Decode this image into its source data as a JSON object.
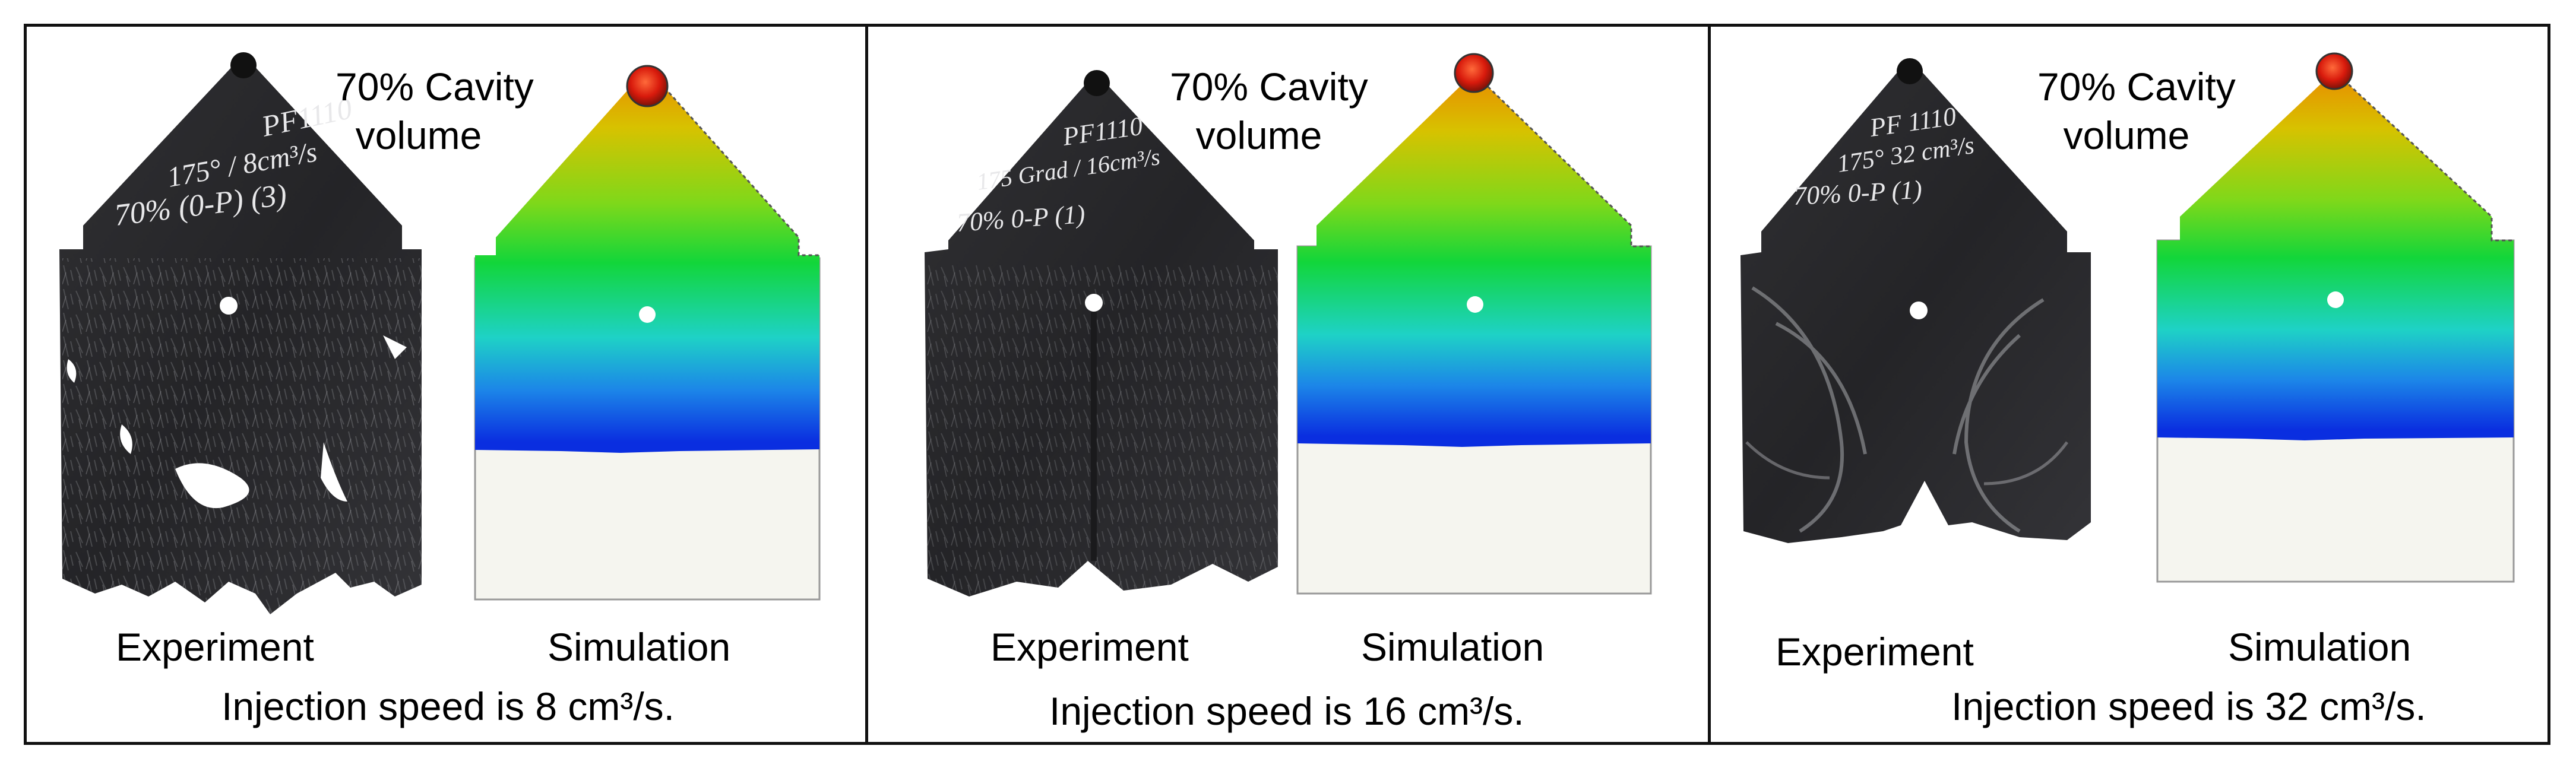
{
  "panels": [
    {
      "cavity_line1": "70% Cavity",
      "cavity_line2": "volume",
      "experiment_label": "Experiment",
      "simulation_label": "Simulation",
      "caption": "Injection speed is 8 cm³/s.",
      "handwriting": [
        "PF1110",
        "175° / 8cm³/s",
        "70% (0-P) (3)"
      ]
    },
    {
      "cavity_line1": "70% Cavity",
      "cavity_line2": "volume",
      "experiment_label": "Experiment",
      "simulation_label": "Simulation",
      "caption": "Injection speed is 16 cm³/s.",
      "handwriting": [
        "PF1110",
        "175 Grad / 16cm³/s",
        "70% 0-P (1)"
      ]
    },
    {
      "cavity_line1": "70% Cavity",
      "cavity_line2": "volume",
      "experiment_label": "Experiment",
      "simulation_label": "Simulation",
      "caption": "Injection speed is 32 cm³/s.",
      "handwriting": [
        "PF 1110",
        "175° 32 cm³/s",
        "70% 0-P (1)"
      ]
    }
  ],
  "colors": {
    "border": "#111111",
    "specimen": "#2b2b2d",
    "sim_top": "#e98a00",
    "sim_yellow": "#d7c200",
    "sim_green": "#12d63a",
    "sim_cyan": "#1ed2c6",
    "sim_blue": "#0a2ee0",
    "sim_empty": "#f5f5ef",
    "gate": "#e01f10"
  }
}
